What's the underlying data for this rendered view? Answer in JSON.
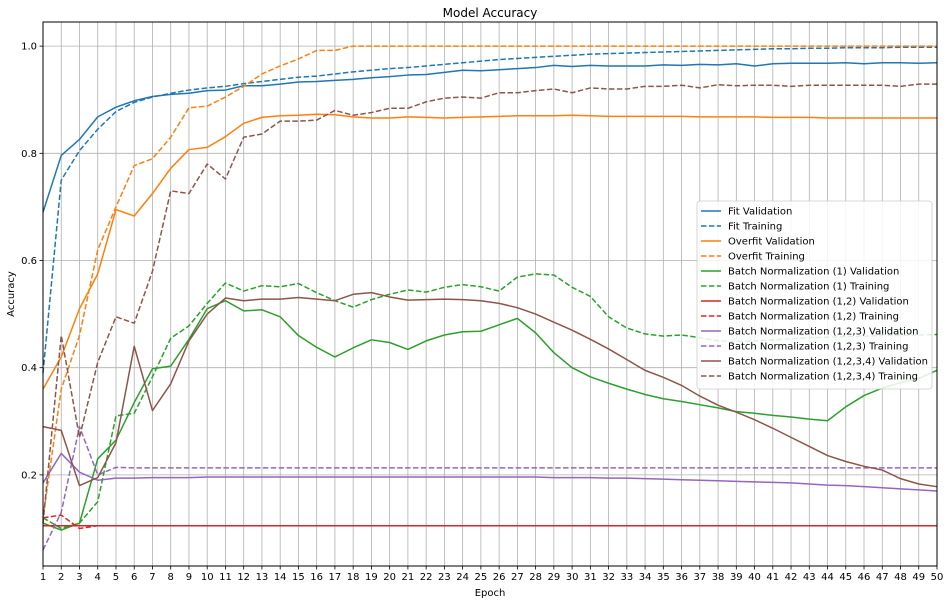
{
  "chart_data": {
    "type": "line",
    "title": "Model Accuracy",
    "xlabel": "Epoch",
    "ylabel": "Accuracy",
    "xlim": [
      1,
      50
    ],
    "ylim": [
      0.03,
      1.045
    ],
    "x_ticks": [
      1,
      2,
      3,
      4,
      5,
      6,
      7,
      8,
      9,
      10,
      11,
      12,
      13,
      14,
      15,
      16,
      17,
      18,
      19,
      20,
      21,
      22,
      23,
      24,
      25,
      26,
      27,
      28,
      29,
      30,
      31,
      32,
      33,
      34,
      35,
      36,
      37,
      38,
      39,
      40,
      41,
      42,
      43,
      44,
      45,
      46,
      47,
      48,
      49,
      50
    ],
    "y_ticks": [
      0.2,
      0.4,
      0.6,
      0.8,
      1.0
    ],
    "y_tick_labels": [
      "0.2",
      "0.4",
      "0.6",
      "0.8",
      "1.0"
    ],
    "grid": true,
    "legend_position": "center-right",
    "x": [
      1,
      2,
      3,
      4,
      5,
      6,
      7,
      8,
      9,
      10,
      11,
      12,
      13,
      14,
      15,
      16,
      17,
      18,
      19,
      20,
      21,
      22,
      23,
      24,
      25,
      26,
      27,
      28,
      29,
      30,
      31,
      32,
      33,
      34,
      35,
      36,
      37,
      38,
      39,
      40,
      41,
      42,
      43,
      44,
      45,
      46,
      47,
      48,
      49,
      50
    ],
    "series": [
      {
        "name": "Fit Validation",
        "color": "#1f77b4",
        "style": "solid",
        "values": [
          0.69,
          0.796,
          0.826,
          0.868,
          0.886,
          0.898,
          0.906,
          0.91,
          0.912,
          0.917,
          0.918,
          0.926,
          0.926,
          0.929,
          0.933,
          0.934,
          0.936,
          0.938,
          0.941,
          0.943,
          0.946,
          0.947,
          0.951,
          0.955,
          0.954,
          0.956,
          0.958,
          0.96,
          0.964,
          0.962,
          0.964,
          0.963,
          0.963,
          0.963,
          0.965,
          0.964,
          0.966,
          0.965,
          0.967,
          0.963,
          0.967,
          0.968,
          0.968,
          0.968,
          0.969,
          0.967,
          0.969,
          0.969,
          0.968,
          0.969
        ]
      },
      {
        "name": "Fit Training",
        "color": "#1f77b4",
        "style": "dashed",
        "values": [
          0.39,
          0.75,
          0.805,
          0.845,
          0.878,
          0.895,
          0.905,
          0.912,
          0.918,
          0.922,
          0.925,
          0.93,
          0.934,
          0.938,
          0.942,
          0.944,
          0.948,
          0.952,
          0.955,
          0.958,
          0.96,
          0.963,
          0.966,
          0.969,
          0.972,
          0.975,
          0.977,
          0.979,
          0.981,
          0.983,
          0.985,
          0.986,
          0.987,
          0.988,
          0.989,
          0.99,
          0.991,
          0.992,
          0.993,
          0.994,
          0.995,
          0.995,
          0.996,
          0.996,
          0.997,
          0.997,
          0.997,
          0.998,
          0.998,
          0.998
        ]
      },
      {
        "name": "Overfit Validation",
        "color": "#ff7f0e",
        "style": "solid",
        "values": [
          0.36,
          0.42,
          0.51,
          0.575,
          0.695,
          0.683,
          0.725,
          0.772,
          0.807,
          0.811,
          0.831,
          0.856,
          0.867,
          0.87,
          0.871,
          0.873,
          0.872,
          0.868,
          0.866,
          0.866,
          0.868,
          0.867,
          0.866,
          0.867,
          0.868,
          0.869,
          0.87,
          0.87,
          0.87,
          0.871,
          0.87,
          0.869,
          0.869,
          0.869,
          0.869,
          0.869,
          0.868,
          0.868,
          0.868,
          0.868,
          0.867,
          0.867,
          0.867,
          0.866,
          0.866,
          0.866,
          0.866,
          0.866,
          0.866,
          0.866
        ]
      },
      {
        "name": "Overfit Training",
        "color": "#ff7f0e",
        "style": "dashed",
        "values": [
          0.12,
          0.36,
          0.46,
          0.62,
          0.7,
          0.777,
          0.79,
          0.83,
          0.885,
          0.888,
          0.905,
          0.925,
          0.948,
          0.963,
          0.976,
          0.992,
          0.992,
          1.0,
          1.0,
          1.0,
          1.0,
          1.0,
          1.0,
          1.0,
          1.0,
          1.0,
          1.0,
          1.0,
          1.0,
          1.0,
          1.0,
          1.0,
          1.0,
          1.0,
          1.0,
          1.0,
          1.0,
          1.0,
          1.0,
          1.0,
          1.0,
          1.0,
          1.0,
          1.0,
          1.0,
          1.0,
          1.0,
          1.0,
          1.0,
          1.0
        ]
      },
      {
        "name": "Batch Normalization (1) Validation",
        "color": "#2ca02c",
        "style": "solid",
        "values": [
          0.11,
          0.097,
          0.11,
          0.23,
          0.265,
          0.335,
          0.398,
          0.403,
          0.453,
          0.51,
          0.525,
          0.506,
          0.508,
          0.495,
          0.46,
          0.438,
          0.42,
          0.437,
          0.452,
          0.447,
          0.434,
          0.45,
          0.461,
          0.467,
          0.468,
          0.48,
          0.492,
          0.465,
          0.428,
          0.4,
          0.383,
          0.371,
          0.36,
          0.35,
          0.342,
          0.337,
          0.331,
          0.325,
          0.318,
          0.315,
          0.311,
          0.308,
          0.304,
          0.301,
          0.327,
          0.348,
          0.362,
          0.372,
          0.38,
          0.395
        ]
      },
      {
        "name": "Batch Normalization (1) Training",
        "color": "#2ca02c",
        "style": "dashed",
        "values": [
          0.12,
          0.1,
          0.11,
          0.15,
          0.31,
          0.315,
          0.383,
          0.455,
          0.478,
          0.52,
          0.558,
          0.543,
          0.553,
          0.551,
          0.557,
          0.54,
          0.525,
          0.513,
          0.527,
          0.537,
          0.545,
          0.541,
          0.55,
          0.555,
          0.551,
          0.543,
          0.569,
          0.575,
          0.573,
          0.55,
          0.533,
          0.495,
          0.474,
          0.463,
          0.459,
          0.461,
          0.456,
          0.45,
          0.449,
          0.45,
          0.452,
          0.454,
          0.456,
          0.457,
          0.458,
          0.459,
          0.46,
          0.46,
          0.461,
          0.462
        ]
      },
      {
        "name": "Batch Normalization (1,2) Validation",
        "color": "#d62728",
        "style": "solid",
        "values": [
          0.105,
          0.105,
          0.105,
          0.105,
          0.105,
          0.105,
          0.105,
          0.105,
          0.105,
          0.105,
          0.105,
          0.105,
          0.105,
          0.105,
          0.105,
          0.105,
          0.105,
          0.105,
          0.105,
          0.105,
          0.105,
          0.105,
          0.105,
          0.105,
          0.105,
          0.105,
          0.105,
          0.105,
          0.105,
          0.105,
          0.105,
          0.105,
          0.105,
          0.105,
          0.105,
          0.105,
          0.105,
          0.105,
          0.105,
          0.105,
          0.105,
          0.105,
          0.105,
          0.105,
          0.105,
          0.105,
          0.105,
          0.105,
          0.105,
          0.105
        ]
      },
      {
        "name": "Batch Normalization (1,2) Training",
        "color": "#d62728",
        "style": "dashed",
        "values": [
          0.12,
          0.125,
          0.1,
          0.105,
          0.105,
          0.105,
          0.105,
          0.105,
          0.105,
          0.105,
          0.105,
          0.105,
          0.105,
          0.105,
          0.105,
          0.105,
          0.105,
          0.105,
          0.105,
          0.105,
          0.105,
          0.105,
          0.105,
          0.105,
          0.105,
          0.105,
          0.105,
          0.105,
          0.105,
          0.105,
          0.105,
          0.105,
          0.105,
          0.105,
          0.105,
          0.105,
          0.105,
          0.105,
          0.105,
          0.105,
          0.105,
          0.105,
          0.105,
          0.105,
          0.105,
          0.105,
          0.105,
          0.105,
          0.105,
          0.105
        ]
      },
      {
        "name": "Batch Normalization (1,2,3) Validation",
        "color": "#9467bd",
        "style": "solid",
        "values": [
          0.185,
          0.24,
          0.205,
          0.19,
          0.194,
          0.194,
          0.195,
          0.195,
          0.195,
          0.196,
          0.196,
          0.196,
          0.196,
          0.196,
          0.196,
          0.196,
          0.196,
          0.196,
          0.196,
          0.196,
          0.196,
          0.196,
          0.196,
          0.196,
          0.196,
          0.196,
          0.196,
          0.196,
          0.195,
          0.195,
          0.195,
          0.194,
          0.194,
          0.193,
          0.192,
          0.191,
          0.19,
          0.189,
          0.188,
          0.187,
          0.186,
          0.185,
          0.183,
          0.181,
          0.18,
          0.178,
          0.176,
          0.174,
          0.172,
          0.17
        ]
      },
      {
        "name": "Batch Normalization (1,2,3) Training",
        "color": "#9467bd",
        "style": "dashed",
        "values": [
          0.06,
          0.13,
          0.29,
          0.2,
          0.214,
          0.213,
          0.213,
          0.213,
          0.213,
          0.213,
          0.213,
          0.213,
          0.213,
          0.213,
          0.213,
          0.213,
          0.213,
          0.213,
          0.213,
          0.213,
          0.213,
          0.213,
          0.213,
          0.213,
          0.213,
          0.213,
          0.213,
          0.213,
          0.213,
          0.213,
          0.213,
          0.213,
          0.213,
          0.213,
          0.213,
          0.213,
          0.213,
          0.213,
          0.213,
          0.213,
          0.213,
          0.213,
          0.213,
          0.213,
          0.213,
          0.213,
          0.213,
          0.213,
          0.213,
          0.213
        ]
      },
      {
        "name": "Batch Normalization (1,2,3,4) Validation",
        "color": "#8c564b",
        "style": "solid",
        "values": [
          0.29,
          0.283,
          0.18,
          0.195,
          0.26,
          0.44,
          0.32,
          0.37,
          0.45,
          0.5,
          0.53,
          0.525,
          0.528,
          0.528,
          0.531,
          0.528,
          0.525,
          0.537,
          0.54,
          0.532,
          0.526,
          0.527,
          0.528,
          0.527,
          0.525,
          0.52,
          0.512,
          0.5,
          0.485,
          0.47,
          0.453,
          0.435,
          0.415,
          0.395,
          0.382,
          0.367,
          0.347,
          0.33,
          0.317,
          0.303,
          0.287,
          0.27,
          0.253,
          0.236,
          0.225,
          0.216,
          0.209,
          0.193,
          0.183,
          0.178
        ]
      },
      {
        "name": "Batch Normalization (1,2,3,4) Training",
        "color": "#8c564b",
        "style": "dashed",
        "values": [
          0.11,
          0.46,
          0.27,
          0.41,
          0.495,
          0.483,
          0.58,
          0.73,
          0.725,
          0.78,
          0.752,
          0.83,
          0.836,
          0.86,
          0.86,
          0.862,
          0.88,
          0.871,
          0.876,
          0.884,
          0.884,
          0.896,
          0.903,
          0.905,
          0.903,
          0.913,
          0.913,
          0.917,
          0.92,
          0.913,
          0.922,
          0.92,
          0.92,
          0.925,
          0.925,
          0.927,
          0.922,
          0.928,
          0.926,
          0.927,
          0.927,
          0.925,
          0.927,
          0.927,
          0.927,
          0.927,
          0.927,
          0.925,
          0.929,
          0.929
        ]
      }
    ]
  }
}
